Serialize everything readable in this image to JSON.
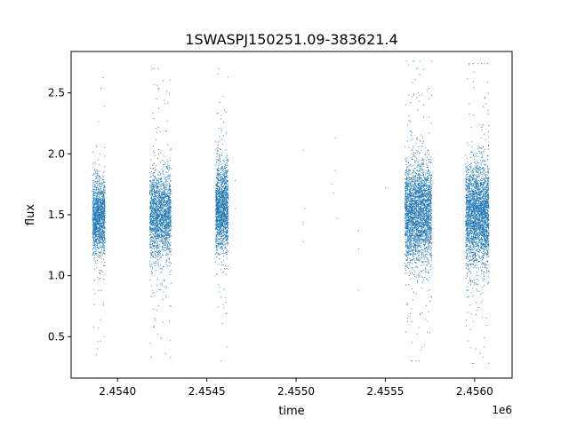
{
  "chart_data": {
    "type": "scatter",
    "title": "1SWASPJ150251.09-383621.4",
    "xlabel": "time",
    "ylabel": "flux",
    "x_offset_label": "1e6",
    "xlim": [
      2.45374,
      2.45621
    ],
    "ylim": [
      0.16,
      2.84
    ],
    "x_ticks": [
      2.454,
      2.4545,
      2.455,
      2.4555,
      2.456
    ],
    "x_tick_labels": [
      "2.4540",
      "2.4545",
      "2.4550",
      "2.4555",
      "2.4560"
    ],
    "y_ticks": [
      0.5,
      1.0,
      1.5,
      2.0,
      2.5
    ],
    "y_tick_labels": [
      "0.5",
      "1.0",
      "1.5",
      "2.0",
      "2.5"
    ],
    "grid": false,
    "marker_color": "#1f77b4",
    "clusters": [
      {
        "x_range": [
          2.45386,
          2.45393
        ],
        "y_center": 1.48,
        "y_spread": 0.15,
        "y_min": 0.35,
        "y_max": 2.7,
        "points": 1400
      },
      {
        "x_range": [
          2.45418,
          2.4543
        ],
        "y_center": 1.5,
        "y_spread": 0.17,
        "y_min": 0.33,
        "y_max": 2.7,
        "points": 2000
      },
      {
        "x_range": [
          2.45455,
          2.45462
        ],
        "y_center": 1.55,
        "y_spread": 0.18,
        "y_min": 0.3,
        "y_max": 2.7,
        "points": 1600
      },
      {
        "x_range": [
          2.45561,
          2.45576
        ],
        "y_center": 1.52,
        "y_spread": 0.2,
        "y_min": 0.3,
        "y_max": 2.76,
        "points": 3000
      },
      {
        "x_range": [
          2.45595,
          2.45608
        ],
        "y_center": 1.5,
        "y_spread": 0.2,
        "y_min": 0.28,
        "y_max": 2.74,
        "points": 2800
      }
    ],
    "outliers": [
      {
        "x": 2.45466,
        "y": 1.78
      },
      {
        "x": 2.45466,
        "y": 1.55
      },
      {
        "x": 2.45504,
        "y": 2.03
      },
      {
        "x": 2.45504,
        "y": 1.28
      },
      {
        "x": 2.45505,
        "y": 1.55
      },
      {
        "x": 2.45504,
        "y": 1.42
      },
      {
        "x": 2.45504,
        "y": 1.44
      },
      {
        "x": 2.4552,
        "y": 1.75
      },
      {
        "x": 2.45521,
        "y": 1.68
      },
      {
        "x": 2.45522,
        "y": 1.86
      },
      {
        "x": 2.45522,
        "y": 2.13
      },
      {
        "x": 2.45523,
        "y": 1.47
      },
      {
        "x": 2.45535,
        "y": 1.37
      },
      {
        "x": 2.45535,
        "y": 1.22
      },
      {
        "x": 2.45535,
        "y": 0.88
      },
      {
        "x": 2.4555,
        "y": 1.72
      }
    ]
  }
}
